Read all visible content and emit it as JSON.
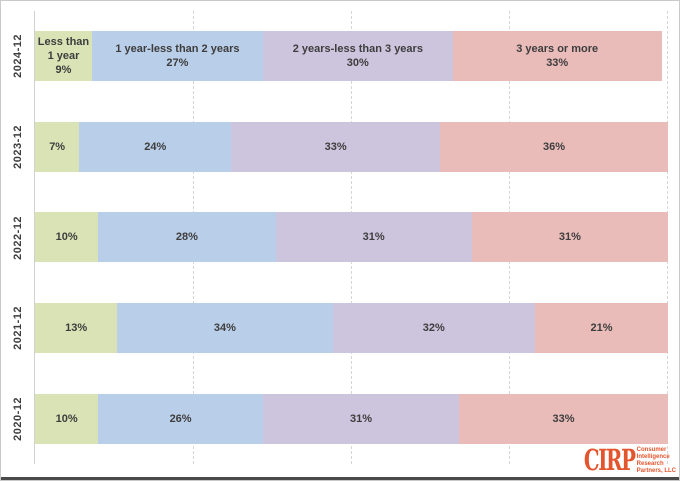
{
  "chart_data": {
    "type": "bar",
    "orientation": "horizontal-stacked",
    "title": "",
    "xlabel": "",
    "ylabel": "",
    "xlim": [
      0,
      100
    ],
    "grid": "vertical-dashed",
    "gridlines_pct": [
      25,
      50,
      75,
      100
    ],
    "legend_position": "inline-labels-on-first-row",
    "value_suffix": "%",
    "categories": [
      "2024-12",
      "2023-12",
      "2022-12",
      "2021-12",
      "2020-12"
    ],
    "series": [
      {
        "name": "Less than 1 year",
        "color": "#d9e3b5",
        "values": [
          9,
          7,
          10,
          13,
          10
        ]
      },
      {
        "name": "1 year-less than 2 years",
        "color": "#b9cee8",
        "values": [
          27,
          24,
          28,
          34,
          26
        ]
      },
      {
        "name": "2 years-less than 3 years",
        "color": "#cdc4dd",
        "values": [
          30,
          33,
          31,
          32,
          31
        ]
      },
      {
        "name": "3 years or more",
        "color": "#e9bcba",
        "values": [
          33,
          36,
          31,
          21,
          33
        ]
      }
    ]
  },
  "branding": {
    "logo_text": "CIRP",
    "logo_color": "#e4552d",
    "logo_sub_lines": [
      "Consumer",
      "Intelligence",
      "Research",
      "Partners, LLC"
    ]
  },
  "style": {
    "axis_line_color": "#d0d0d0",
    "gridline_color": "#d6d6d6",
    "label_text_color": "#3d3d3d",
    "bottom_bar_color": "#4a4a4a",
    "background": "#ffffff"
  }
}
